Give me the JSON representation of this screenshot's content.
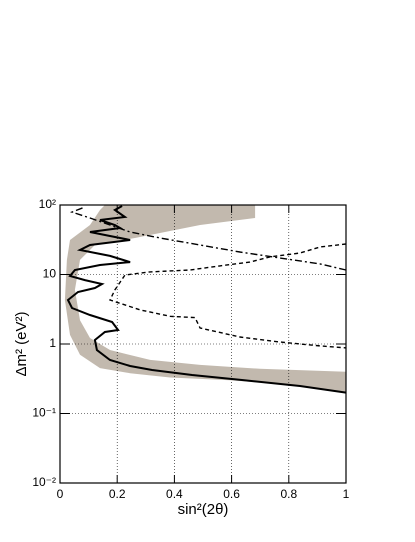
{
  "chart_data": {
    "type": "line",
    "x_label": "sin²(2θ)",
    "y_label": "Δm² (eV²)",
    "xlim": [
      0,
      1
    ],
    "xticks": [
      0,
      0.2,
      0.4,
      0.6,
      0.8,
      1
    ],
    "ylim": [
      0.01,
      100
    ],
    "log_y": true,
    "yticks": [
      {
        "value": 0.01,
        "label": "10⁻²"
      },
      {
        "value": 0.1,
        "label": "10⁻¹"
      },
      1,
      10,
      {
        "value": 100,
        "label": "10²"
      }
    ],
    "grid": true,
    "series": [
      {
        "color": "#c2b9ae",
        "fill": true,
        "x": [
          0.157,
          0.682,
          0.682,
          0.49,
          0.367,
          0.262,
          0.122,
          0.07,
          0.052,
          0.07,
          0.105,
          0.175,
          0.315,
          0.49,
          0.699,
          1,
          1,
          0.804,
          0.594,
          0.385,
          0.245,
          0.14,
          0.07,
          0.035,
          0.017,
          0.024,
          0.035,
          0.105,
          0.14
        ],
        "values": [
          100,
          100,
          65,
          51.5,
          40.9,
          33.5,
          26.6,
          16.2,
          6.0,
          2.2,
          1.22,
          0.82,
          0.59,
          0.5,
          0.44,
          0.4,
          0.2,
          0.26,
          0.3,
          0.33,
          0.38,
          0.45,
          0.7,
          1.35,
          4.3,
          16.2,
          31.4,
          51.5,
          84.7
        ]
      },
      {
        "color": "#000000",
        "dash": "dashed",
        "x": [
          1,
          0.909,
          0.839,
          0.734,
          0.664,
          0.559,
          0.455,
          0.315,
          0.227,
          0.192,
          0.175,
          0.28,
          0.385,
          0.472,
          0.49,
          0.629,
          0.769,
          0.909,
          1
        ],
        "values": [
          27.5,
          24.9,
          20.4,
          17.9,
          15.1,
          13.3,
          11.6,
          10.9,
          9.8,
          6.0,
          4.3,
          3.1,
          2.5,
          2.4,
          1.7,
          1.26,
          1.07,
          0.94,
          0.88
        ]
      },
      {
        "color": "#000000",
        "dash": "dashdot",
        "x": [
          1,
          0.909,
          0.769,
          0.629,
          0.49,
          0.35,
          0.245,
          0.175,
          0.105,
          0.042,
          0.087
        ],
        "values": [
          11.6,
          14.2,
          17.3,
          21.1,
          26.6,
          33.5,
          40.9,
          51.5,
          65,
          79,
          93.6
        ]
      },
      {
        "color": "#000000",
        "dash": "solid",
        "x": [
          1,
          0.839,
          0.636,
          0.462,
          0.322,
          0.245,
          0.175,
          0.129,
          0.122,
          0.157,
          0.203,
          0.182,
          0.105,
          0.042,
          0.028,
          0.063,
          0.122,
          0.147,
          0.087,
          0.035,
          0.052,
          0.14,
          0.245,
          0.175,
          0.07,
          0.105,
          0.245,
          0.175,
          0.105,
          0.21,
          0.192,
          0.14,
          0.227,
          0.192,
          0.217
        ],
        "values": [
          0.2,
          0.249,
          0.303,
          0.358,
          0.423,
          0.482,
          0.589,
          0.82,
          1.14,
          1.49,
          1.59,
          2.07,
          2.61,
          3.3,
          4.3,
          5.6,
          6.4,
          7.3,
          8.3,
          9.5,
          11.6,
          13.7,
          15.1,
          18.5,
          22.5,
          26.6,
          31.4,
          35.8,
          40.9,
          46.7,
          51.5,
          60.8,
          67.2,
          84.7,
          96.8
        ]
      }
    ]
  }
}
